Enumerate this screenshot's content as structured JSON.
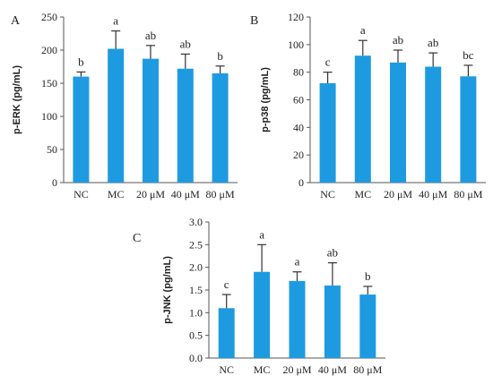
{
  "chart_data": [
    {
      "type": "bar",
      "panel_label": "A",
      "ylabel": "p-ERK (pg/mL)",
      "categories": [
        "NC",
        "MC",
        "20 μM",
        "40 μM",
        "80 μM"
      ],
      "values": [
        160,
        202,
        187,
        172,
        165
      ],
      "errors": [
        7,
        27,
        20,
        22,
        11
      ],
      "significance": [
        "b",
        "a",
        "ab",
        "ab",
        "b"
      ],
      "ylim": [
        0,
        250
      ],
      "yticks": [
        0,
        50,
        100,
        150,
        200,
        250
      ],
      "bar_color": "#1e9be0"
    },
    {
      "type": "bar",
      "panel_label": "B",
      "ylabel": "p-p38 (pg/mL)",
      "categories": [
        "NC",
        "MC",
        "20 μM",
        "40 μM",
        "80 μM"
      ],
      "values": [
        72,
        92,
        87,
        84,
        77
      ],
      "errors": [
        8,
        11,
        9,
        10,
        8
      ],
      "significance": [
        "c",
        "a",
        "ab",
        "ab",
        "bc"
      ],
      "ylim": [
        0,
        120
      ],
      "yticks": [
        0,
        20,
        40,
        60,
        80,
        100,
        120
      ],
      "bar_color": "#1e9be0"
    },
    {
      "type": "bar",
      "panel_label": "C",
      "ylabel": "p-JNK (pg/mL)",
      "categories": [
        "NC",
        "MC",
        "20 μM",
        "40 μM",
        "80 μM"
      ],
      "values": [
        1.1,
        1.9,
        1.7,
        1.6,
        1.4
      ],
      "errors": [
        0.3,
        0.6,
        0.2,
        0.5,
        0.18
      ],
      "significance": [
        "c",
        "a",
        "a",
        "ab",
        "b"
      ],
      "ylim": [
        0,
        3.0
      ],
      "yticks": [
        "0.0",
        "0.5",
        "1.0",
        "1.5",
        "2.0",
        "2.5",
        "3.0"
      ],
      "bar_color": "#1e9be0"
    }
  ]
}
